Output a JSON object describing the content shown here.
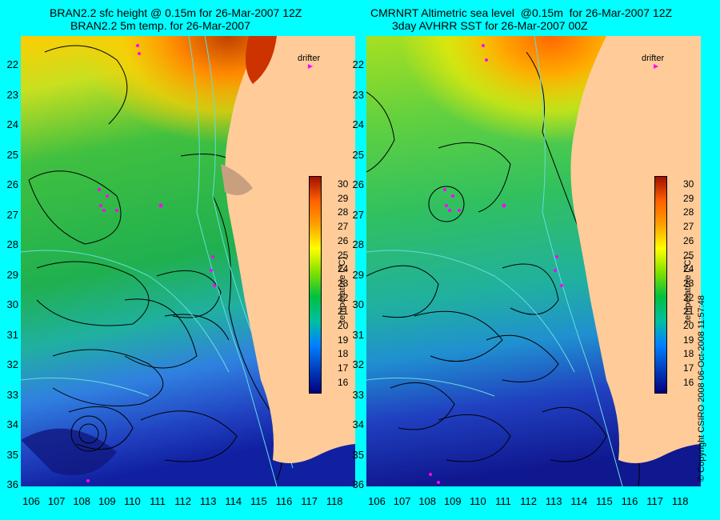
{
  "left": {
    "title_line1": "BRAN2.2 sfc height @ 0.15m for 26-Mar-2007 12Z",
    "title_line2": "BRAN2.2 5m temp. for 26-Mar-2007"
  },
  "right": {
    "title_line1": "CMRNRT Altimetric sea level  @0.15m  for 26-Mar-2007 12Z",
    "title_line2": "3day AVHRR SST for 26-Mar-2007 00Z"
  },
  "drifter_label": "drifter",
  "colorbar": {
    "title": "temperature (°C)",
    "ticks": [
      "30",
      "29",
      "28",
      "27",
      "26",
      "25",
      "24",
      "23",
      "22",
      "21",
      "20",
      "19",
      "18",
      "17",
      "16"
    ]
  },
  "axes": {
    "y_ticks": [
      "22",
      "23",
      "24",
      "25",
      "26",
      "27",
      "28",
      "29",
      "30",
      "31",
      "32",
      "33",
      "34",
      "35",
      "36"
    ],
    "x_ticks": [
      "106",
      "107",
      "108",
      "109",
      "110",
      "111",
      "112",
      "113",
      "114",
      "115",
      "116",
      "117",
      "118"
    ]
  },
  "copyright": "© Copyright CSIRO 2008   06-Oct-2008 11:57:48",
  "colors": {
    "background": "#00ffff",
    "land": "#ffcc99",
    "contour": "#000000",
    "isobath": "#66dddd",
    "drifter": "#ff00ff"
  }
}
